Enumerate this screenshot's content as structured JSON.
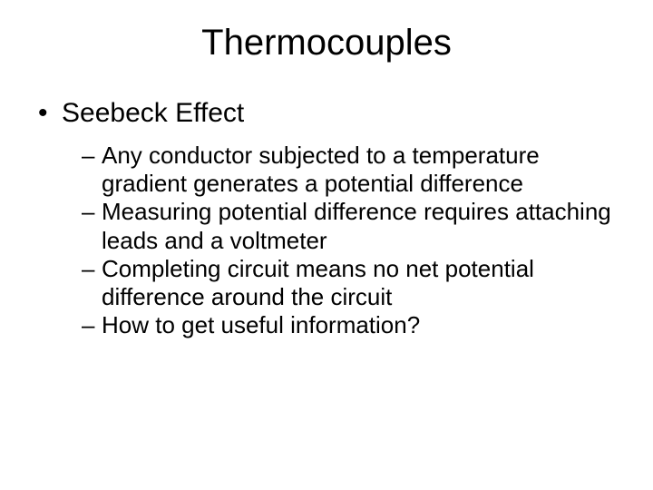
{
  "slide": {
    "title": "Thermocouples",
    "background_color": "#ffffff",
    "text_color": "#000000",
    "font_family": "Arial",
    "title_fontsize": 40,
    "level1_fontsize": 30,
    "level2_fontsize": 26,
    "bullets": {
      "level1": [
        {
          "text": "Seebeck Effect",
          "children": [
            "Any conductor subjected to a temperature gradient generates a potential difference",
            "Measuring potential difference requires attaching leads and a voltmeter",
            "Completing circuit means no net potential difference around the circuit",
            "How to get useful information?"
          ]
        }
      ]
    }
  }
}
